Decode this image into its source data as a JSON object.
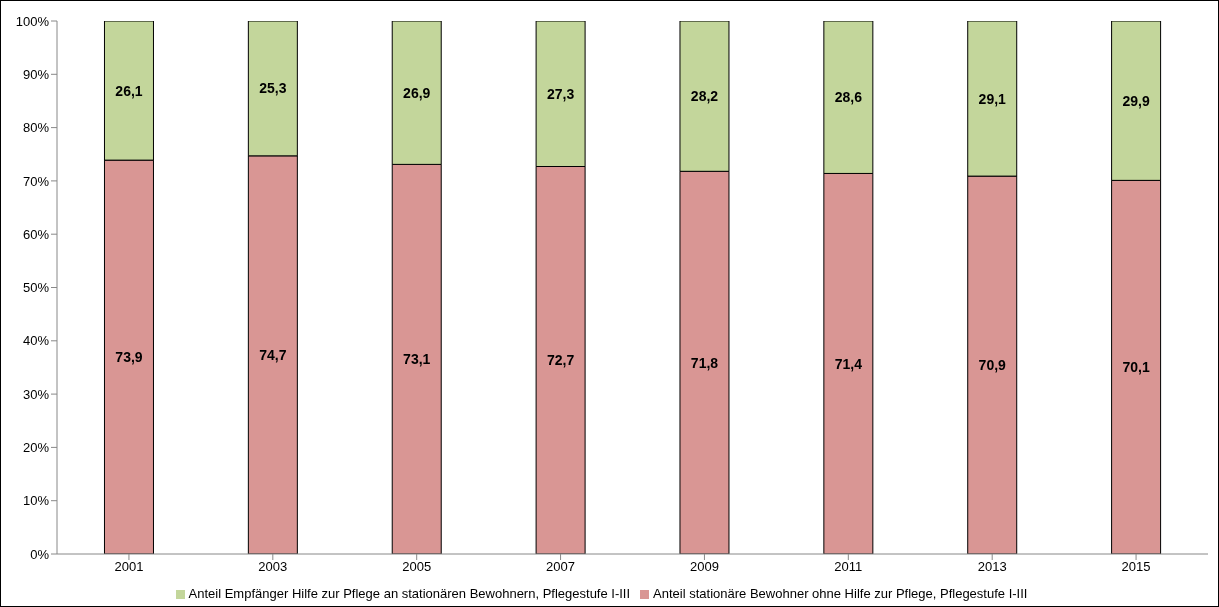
{
  "chart_data": {
    "type": "bar",
    "stacked": true,
    "categories": [
      "2001",
      "2003",
      "2005",
      "2007",
      "2009",
      "2011",
      "2013",
      "2015"
    ],
    "series": [
      {
        "name": "Anteil stationäre Bewohner ohne Hilfe zur Pflege, Pflegestufe I-III",
        "color": "#d99694",
        "values": [
          73.9,
          74.7,
          73.1,
          72.7,
          71.8,
          71.4,
          70.9,
          70.1
        ],
        "value_labels": [
          "73,9",
          "74,7",
          "73,1",
          "72,7",
          "71,8",
          "71,4",
          "70,9",
          "70,1"
        ]
      },
      {
        "name": "Anteil Empfänger Hilfe zur Pflege an stationären Bewohnern, Pflegestufe I-III",
        "color": "#c3d69b",
        "values": [
          26.1,
          25.3,
          26.9,
          27.3,
          28.2,
          28.6,
          29.1,
          29.9
        ],
        "value_labels": [
          "26,1",
          "25,3",
          "26,9",
          "27,3",
          "28,2",
          "28,6",
          "29,1",
          "29,9"
        ]
      }
    ],
    "ylim": [
      0,
      100
    ],
    "yticks": [
      {
        "value": 0,
        "label": "0%"
      },
      {
        "value": 10,
        "label": "10%"
      },
      {
        "value": 20,
        "label": "20%"
      },
      {
        "value": 30,
        "label": "30%"
      },
      {
        "value": 40,
        "label": "40%"
      },
      {
        "value": 50,
        "label": "50%"
      },
      {
        "value": 60,
        "label": "60%"
      },
      {
        "value": 70,
        "label": "70%"
      },
      {
        "value": 80,
        "label": "80%"
      },
      {
        "value": 90,
        "label": "90%"
      },
      {
        "value": 100,
        "label": "100%"
      }
    ],
    "grid": false,
    "legend": "bottom"
  }
}
